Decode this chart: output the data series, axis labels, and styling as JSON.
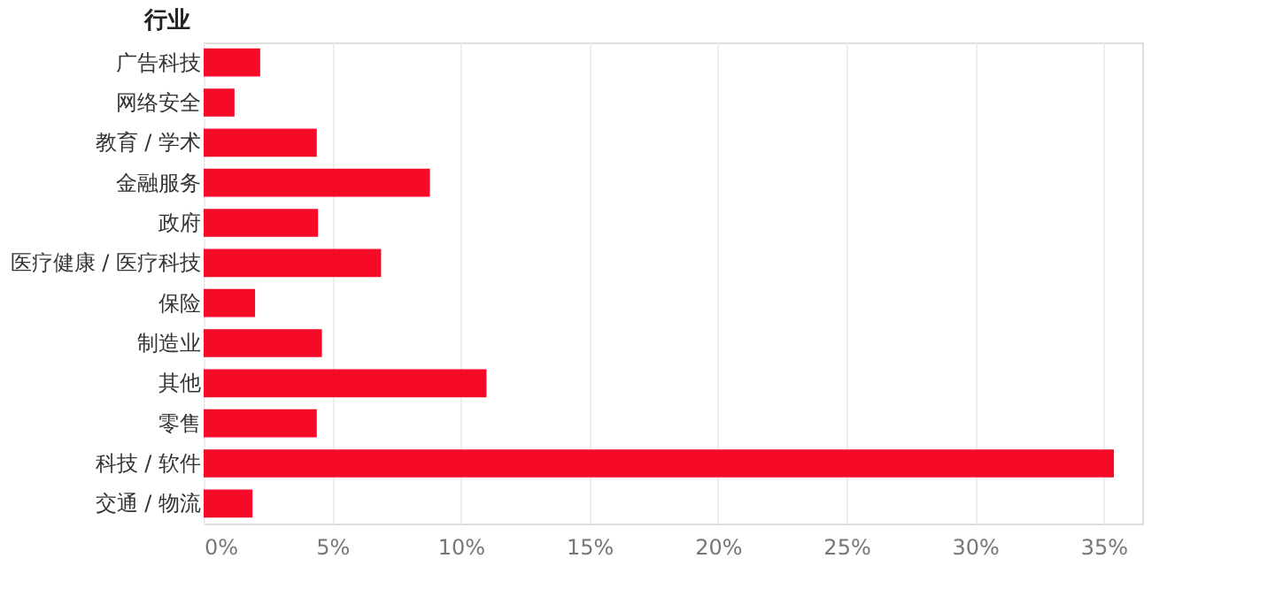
{
  "chart_data": {
    "type": "bar",
    "orientation": "horizontal",
    "ylabel": "行业",
    "categories": [
      "广告科技",
      "网络安全",
      "教育 / 学术",
      "金融服务",
      "政府",
      "医疗健康 / 医疗科技",
      "保险",
      "制造业",
      "其他",
      "零售",
      "科技 / 软件",
      "交通 / 物流"
    ],
    "values": [
      2.2,
      1.2,
      4.4,
      8.8,
      4.45,
      6.9,
      2.0,
      4.6,
      11.0,
      4.4,
      35.4,
      1.9
    ],
    "color": "#f50a28",
    "xlim": [
      0,
      36.5
    ],
    "xticks": [
      {
        "value": 0,
        "label": "0%"
      },
      {
        "value": 5,
        "label": "5%"
      },
      {
        "value": 10,
        "label": "10%"
      },
      {
        "value": 15,
        "label": "15%"
      },
      {
        "value": 20,
        "label": "20%"
      },
      {
        "value": 25,
        "label": "25%"
      },
      {
        "value": 30,
        "label": "30%"
      },
      {
        "value": 35,
        "label": "35%"
      }
    ],
    "grid": "x"
  }
}
